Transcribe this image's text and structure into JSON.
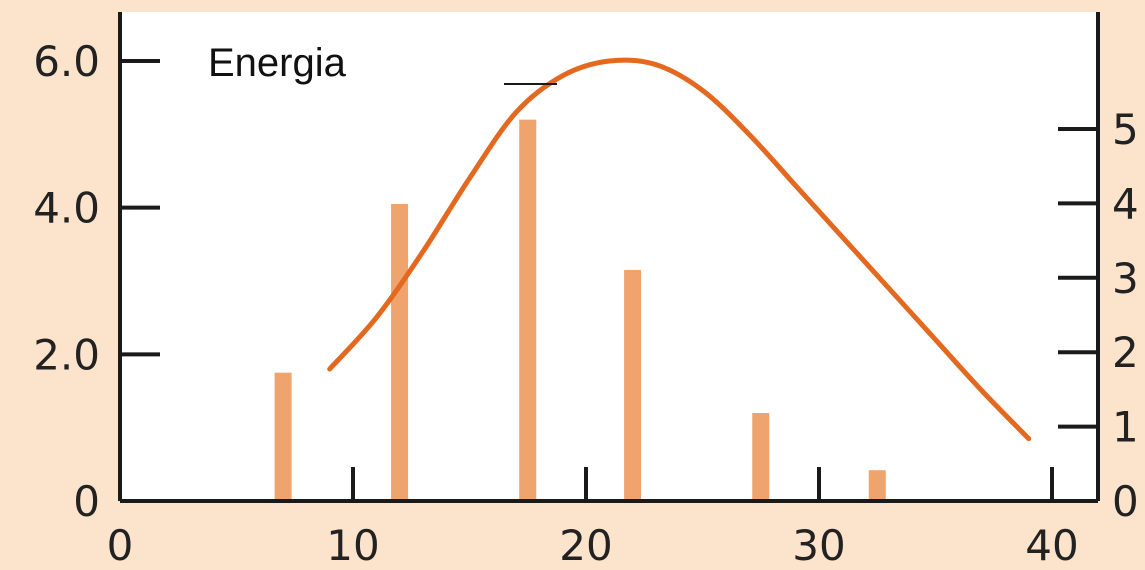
{
  "colors": {
    "background": "#fbe3cc",
    "plot_area": "#ffffff",
    "bar": "#eea46c",
    "curve": "#e2691f",
    "axis": "#1a1a1a"
  },
  "chart_data": {
    "type": "bar",
    "legend_label": "Energia",
    "legend_placement": "top-left",
    "grid": false,
    "xlim": [
      0,
      40
    ],
    "ylim_left": [
      0,
      6.0
    ],
    "ylim_right": [
      0,
      6
    ],
    "x_ticks": [
      {
        "value": 0,
        "label": "0"
      },
      {
        "value": 10,
        "label": "10"
      },
      {
        "value": 20,
        "label": "20"
      },
      {
        "value": 30,
        "label": "30"
      },
      {
        "value": 40,
        "label": "40"
      }
    ],
    "y_left_ticks": [
      {
        "value": 0,
        "label": "0"
      },
      {
        "value": 2.0,
        "label": "2.0"
      },
      {
        "value": 4.0,
        "label": "4.0"
      },
      {
        "value": 6.0,
        "label": "6.0"
      }
    ],
    "y_right_ticks": [
      {
        "value": 0,
        "label": "0"
      },
      {
        "value": 1,
        "label": "1"
      },
      {
        "value": 2,
        "label": "2"
      },
      {
        "value": 3,
        "label": "3"
      },
      {
        "value": 4,
        "label": "4"
      },
      {
        "value": 5,
        "label": "5"
      }
    ],
    "bars": [
      {
        "x": 7,
        "value": 1.75
      },
      {
        "x": 12,
        "value": 4.05
      },
      {
        "x": 17.5,
        "value": 5.2
      },
      {
        "x": 22,
        "value": 3.15
      },
      {
        "x": 27.5,
        "value": 1.2
      },
      {
        "x": 32.5,
        "value": 0.42
      }
    ],
    "curve": [
      {
        "x": 9,
        "y": 1.8
      },
      {
        "x": 11,
        "y": 2.5
      },
      {
        "x": 13,
        "y": 3.4
      },
      {
        "x": 15,
        "y": 4.4
      },
      {
        "x": 17,
        "y": 5.3
      },
      {
        "x": 19,
        "y": 5.8
      },
      {
        "x": 21,
        "y": 6.0
      },
      {
        "x": 23,
        "y": 5.95
      },
      {
        "x": 25,
        "y": 5.6
      },
      {
        "x": 27,
        "y": 5.0
      },
      {
        "x": 29,
        "y": 4.3
      },
      {
        "x": 31,
        "y": 3.6
      },
      {
        "x": 33,
        "y": 2.9
      },
      {
        "x": 35,
        "y": 2.2
      },
      {
        "x": 37,
        "y": 1.5
      },
      {
        "x": 39,
        "y": 0.85
      }
    ]
  }
}
